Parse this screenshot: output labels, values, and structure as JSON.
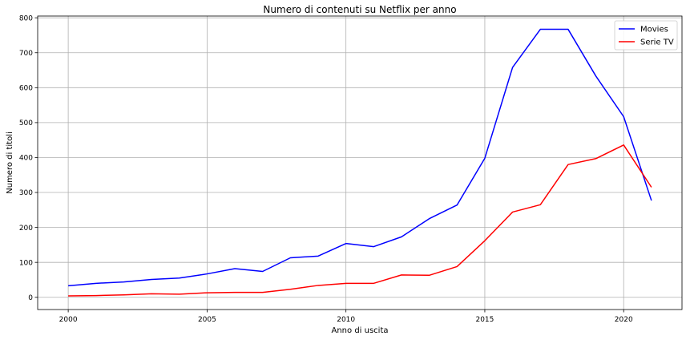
{
  "chart_data": {
    "type": "line",
    "title": "Numero di contenuti su Netflix per anno",
    "xlabel": "Anno di uscita",
    "ylabel": "Numero di titoli",
    "x": [
      2000,
      2001,
      2002,
      2003,
      2004,
      2005,
      2006,
      2007,
      2008,
      2009,
      2010,
      2011,
      2012,
      2013,
      2014,
      2015,
      2016,
      2017,
      2018,
      2019,
      2020,
      2021
    ],
    "series": [
      {
        "name": "Movies",
        "color": "#0000ff",
        "values": [
          33,
          40,
          44,
          51,
          55,
          67,
          82,
          74,
          113,
          118,
          154,
          145,
          173,
          225,
          264,
          398,
          658,
          767,
          767,
          633,
          517,
          277
        ]
      },
      {
        "name": "Serie TV",
        "color": "#ff0000",
        "values": [
          4,
          5,
          7,
          10,
          9,
          13,
          14,
          14,
          23,
          34,
          40,
          40,
          64,
          63,
          88,
          162,
          244,
          265,
          380,
          397,
          436,
          315
        ]
      }
    ],
    "xlim": [
      1998.9,
      2022.1
    ],
    "ylim": [
      -35,
      805
    ],
    "xticks": [
      2000,
      2005,
      2010,
      2015,
      2020
    ],
    "yticks": [
      0,
      100,
      200,
      300,
      400,
      500,
      600,
      700,
      800
    ],
    "grid": true,
    "legend": "top-right"
  }
}
